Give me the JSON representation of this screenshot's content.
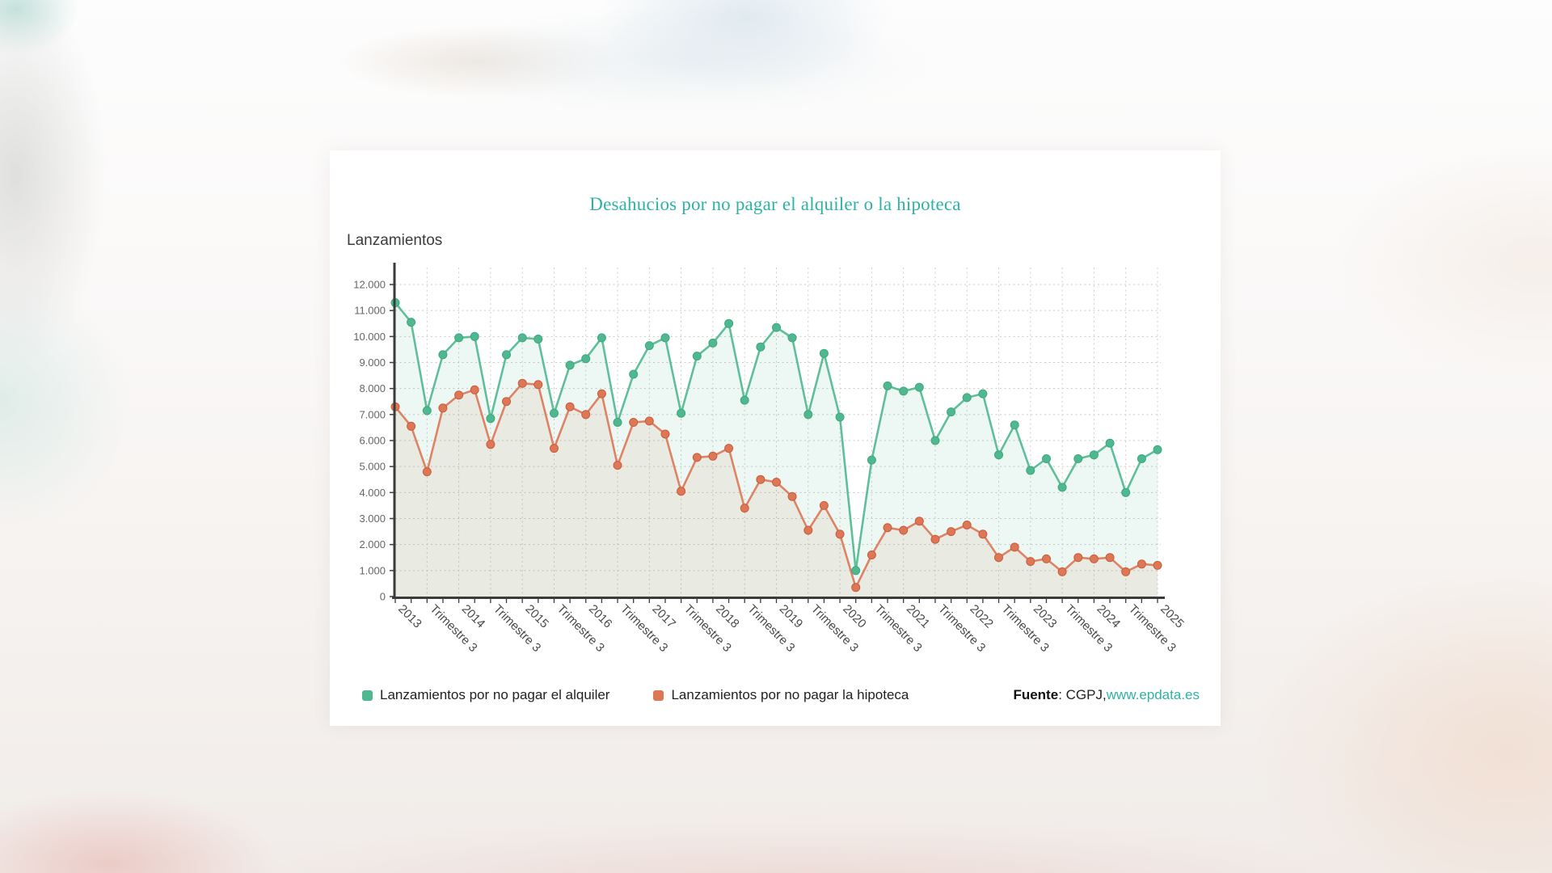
{
  "chart_data": {
    "type": "line",
    "title": "Desahucios por no pagar el alquiler o la hipoteca",
    "title_color": "#2fb2a5",
    "ylabel": "Lanzamientos",
    "ylim": [
      0,
      12000
    ],
    "ytick_step": 1000,
    "grid": true,
    "legend_position": "bottom",
    "categories": [
      "2013",
      "",
      "Trimestre 3",
      "",
      "2014",
      "",
      "Trimestre 3",
      "",
      "2015",
      "",
      "Trimestre 3",
      "",
      "2016",
      "",
      "Trimestre 3",
      "",
      "2017",
      "",
      "Trimestre 3",
      "",
      "2018",
      "",
      "Trimestre 3",
      "",
      "2019",
      "",
      "Trimestre 3",
      "",
      "2020",
      "",
      "Trimestre 3",
      "",
      "2021",
      "",
      "Trimestre 3",
      "",
      "2022",
      "",
      "Trimestre 3",
      "",
      "2023",
      "",
      "Trimestre 3",
      "",
      "2024",
      "",
      "Trimestre 3",
      "",
      "2025"
    ],
    "series": [
      {
        "name": "Lanzamientos por no pagar el alquiler",
        "color": "#4fb890",
        "marker_stroke": "#3fa87e",
        "fill": "rgba(79,184,144,0.10)",
        "values": [
          11300,
          10550,
          7150,
          9300,
          9950,
          10000,
          6850,
          9300,
          9950,
          9900,
          7050,
          8900,
          9150,
          9950,
          6700,
          8550,
          9650,
          9950,
          7050,
          9250,
          9750,
          10500,
          7550,
          9600,
          10350,
          9950,
          7000,
          9350,
          6900,
          1000,
          5250,
          8100,
          7900,
          8050,
          6000,
          7100,
          7650,
          7800,
          5450,
          6600,
          4850,
          5300,
          4200,
          5300,
          5450,
          5900,
          4000,
          5300,
          5650
        ]
      },
      {
        "name": "Lanzamientos por no pagar la hipoteca",
        "color": "#dd7756",
        "marker_stroke": "#c75f3e",
        "fill": "rgba(205,140,105,0.13)",
        "values": [
          7300,
          6550,
          4800,
          7250,
          7750,
          7950,
          5850,
          7500,
          8200,
          8150,
          5700,
          7300,
          7000,
          7800,
          5050,
          6700,
          6750,
          6250,
          4050,
          5350,
          5400,
          5700,
          3400,
          4500,
          4400,
          3850,
          2550,
          3500,
          2400,
          350,
          1600,
          2650,
          2550,
          2900,
          2200,
          2500,
          2750,
          2400,
          1500,
          1900,
          1350,
          1450,
          950,
          1500,
          1450,
          1500,
          950,
          1250,
          1200
        ]
      }
    ],
    "source": {
      "label": "Fuente",
      "rest": ": CGPJ, ",
      "link": "www.epdata.es",
      "link_color": "#2fb2a5"
    }
  }
}
